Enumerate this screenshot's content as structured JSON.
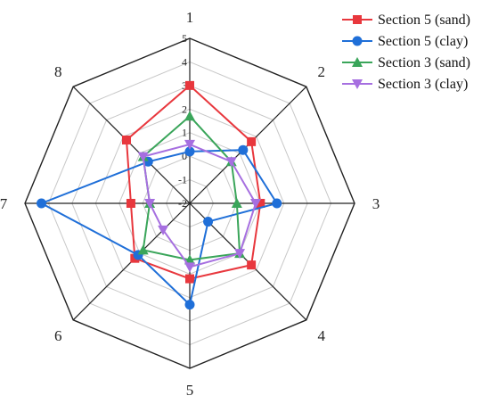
{
  "chart_data": {
    "type": "radar",
    "axes": [
      "1",
      "2",
      "3",
      "4",
      "5",
      "6",
      "7",
      "8"
    ],
    "rlim": [
      -2,
      5
    ],
    "ticks": [
      "-2",
      "-1",
      "0",
      "1",
      "2",
      "3",
      "4",
      "5"
    ],
    "grid": true,
    "legend_position": "top-right",
    "series": [
      {
        "name": "Section 5 (sand)",
        "color": "#e8373d",
        "marker": "square",
        "values": [
          3.0,
          1.7,
          1.0,
          1.7,
          1.2,
          1.3,
          0.5,
          1.8
        ]
      },
      {
        "name": "Section 5 (clay)",
        "color": "#1f6fd8",
        "marker": "circle",
        "values": [
          0.2,
          1.2,
          1.7,
          -0.9,
          2.3,
          1.1,
          4.3,
          0.5
        ]
      },
      {
        "name": "Section 3 (sand)",
        "color": "#3aa55a",
        "marker": "triangle-up",
        "values": [
          1.7,
          0.5,
          0.0,
          1.0,
          0.4,
          0.8,
          -0.3,
          0.8
        ]
      },
      {
        "name": "Section 3 (clay)",
        "color": "#a66fe0",
        "marker": "triangle-down",
        "values": [
          0.5,
          0.5,
          0.8,
          1.0,
          0.7,
          -0.4,
          -0.3,
          0.8
        ]
      }
    ]
  }
}
